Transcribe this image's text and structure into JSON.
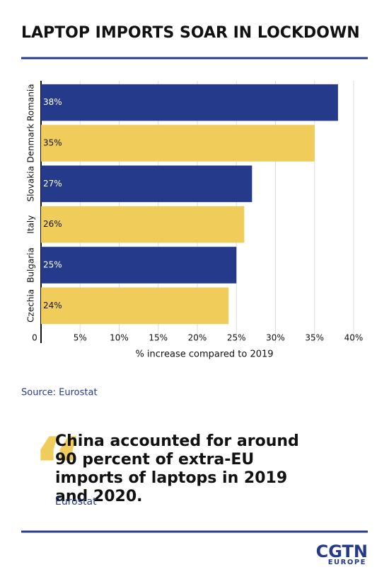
{
  "chart_data": {
    "type": "hbar",
    "title": "LAPTOP IMPORTS SOAR IN LOCKDOWN",
    "categories": [
      "Romania",
      "Denmark",
      "Slovakia",
      "Italy",
      "Bulgaria",
      "Czechia"
    ],
    "values": [
      38,
      35,
      27,
      26,
      25,
      24
    ],
    "value_labels": [
      "38%",
      "35%",
      "27%",
      "26%",
      "25%",
      "24%"
    ],
    "colors": [
      "#253a8a",
      "#f0cd5a",
      "#253a8a",
      "#f0cd5a",
      "#253a8a",
      "#f0cd5a"
    ],
    "xlim": [
      0,
      40
    ],
    "xticks": [
      0,
      {
        "value": 5,
        "label": "5%"
      },
      {
        "value": 10,
        "label": "10%"
      },
      {
        "value": 15,
        "label": "15%"
      },
      {
        "value": 20,
        "label": "20%"
      },
      {
        "value": 25,
        "label": "25%"
      },
      {
        "value": 30,
        "label": "30%"
      },
      {
        "value": 35,
        "label": "35%"
      },
      {
        "value": 40,
        "label": "40%"
      }
    ],
    "xlabel": "% increase compared to 2019",
    "grid": true,
    "source": "Source: Eurostat"
  },
  "quote": {
    "text": "China accounted for around 90 percent of extra-EU imports of laptops in 2019 and 2020.",
    "attribution": "Eurostat"
  },
  "logo": {
    "name": "CGTN",
    "region": "EUROPE"
  }
}
